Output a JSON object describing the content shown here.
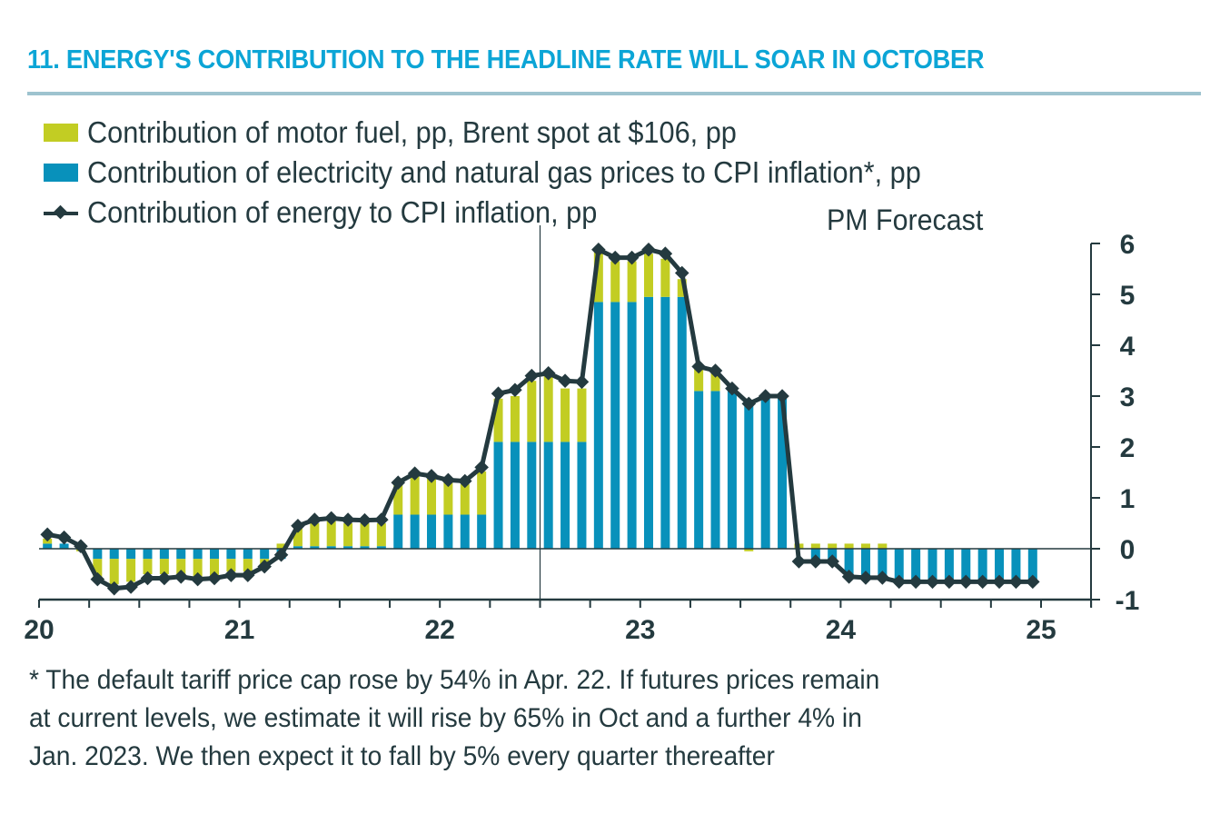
{
  "title": "11.  ENERGY'S CONTRIBUTION TO THE HEADLINE RATE WILL SOAR IN OCTOBER",
  "forecast_label": "PM Forecast",
  "footnote_lines": [
    "* The default tariff price cap rose by 54% in Apr. 22.  If futures prices remain",
    "at current levels, we estimate it will rise by 65% in Oct and a further 4% in",
    "Jan. 2023.  We then expect it to fall by 5% every quarter thereafter"
  ],
  "colors": {
    "title": "#0ca5d6",
    "motor_fuel": "#c2cd23",
    "electricity_gas": "#0891bb",
    "energy_line": "#243a3f",
    "axis": "#243a3f"
  },
  "chart_data": {
    "type": "bar",
    "stacked": true,
    "title": "ENERGY'S CONTRIBUTION TO THE HEADLINE RATE WILL SOAR IN OCTOBER",
    "xlabel": "",
    "ylabel": "",
    "y_axis_side": "right",
    "ylim": [
      -1,
      6
    ],
    "yticks": [
      "6",
      "5",
      "4",
      "3",
      "2",
      "1",
      "0",
      "-1"
    ],
    "ytick_values": [
      6,
      5,
      4,
      3,
      2,
      1,
      0,
      -1
    ],
    "xlim_years": [
      2020,
      2025.25
    ],
    "xtick_labels": [
      "20",
      "21",
      "22",
      "23",
      "24",
      "25"
    ],
    "xtick_label_values": [
      2020,
      2021,
      2022,
      2023,
      2024,
      2025
    ],
    "minor_ticks": "quarterly",
    "forecast_start": 2022.5,
    "legend_position": "top-left",
    "grid": false,
    "x_start": "Jan-2020",
    "x_frequency": "monthly",
    "series": [
      {
        "name": "Contribution of motor fuel, pp, Brent spot at $106, pp",
        "kind": "bar",
        "color": "#c2cd23",
        "values": [
          0.1,
          0.0,
          -0.05,
          -0.4,
          -0.5,
          -0.45,
          -0.3,
          -0.3,
          -0.3,
          -0.35,
          -0.35,
          -0.25,
          -0.25,
          -0.1,
          0.1,
          0.35,
          0.45,
          0.5,
          0.45,
          0.45,
          0.45,
          0.6,
          0.75,
          0.7,
          0.65,
          0.6,
          0.85,
          0.85,
          0.9,
          1.2,
          1.3,
          1.05,
          1.05,
          1.0,
          0.8,
          0.8,
          0.85,
          0.75,
          0.35,
          0.45,
          0.35,
          0.05,
          -0.05,
          0.0,
          0.0,
          0.1,
          0.1,
          0.1,
          0.1,
          0.1,
          0.1,
          0.0,
          0.0,
          0.0,
          0.0,
          0.0,
          0.0,
          0.0,
          0.0,
          0.0
        ]
      },
      {
        "name": "Contribution of electricity and natural gas prices to CPI inflation*, pp",
        "kind": "bar",
        "color": "#0891bb",
        "values": [
          0.1,
          0.1,
          0.0,
          -0.2,
          -0.2,
          -0.2,
          -0.2,
          -0.2,
          -0.2,
          -0.2,
          -0.2,
          -0.2,
          -0.2,
          -0.2,
          -0.2,
          0.05,
          0.05,
          0.05,
          0.05,
          0.05,
          0.05,
          0.67,
          0.67,
          0.67,
          0.67,
          0.67,
          0.67,
          2.1,
          2.1,
          2.1,
          2.1,
          2.1,
          2.1,
          4.85,
          4.85,
          4.85,
          4.95,
          4.95,
          4.95,
          3.1,
          3.1,
          3.1,
          2.9,
          2.95,
          2.95,
          0.0,
          -0.3,
          -0.3,
          -0.6,
          -0.6,
          -0.6,
          -0.63,
          -0.63,
          -0.63,
          -0.63,
          -0.63,
          -0.63,
          -0.63,
          -0.63,
          -0.63
        ]
      },
      {
        "name": "Contribution of energy to CPI inflation, pp",
        "kind": "line",
        "marker": "diamond",
        "color": "#243a3f",
        "values": [
          0.28,
          0.22,
          0.05,
          -0.6,
          -0.78,
          -0.75,
          -0.58,
          -0.58,
          -0.55,
          -0.6,
          -0.58,
          -0.52,
          -0.52,
          -0.35,
          -0.12,
          0.45,
          0.57,
          0.6,
          0.57,
          0.56,
          0.57,
          1.3,
          1.48,
          1.43,
          1.35,
          1.33,
          1.6,
          3.05,
          3.12,
          3.4,
          3.45,
          3.3,
          3.28,
          5.88,
          5.72,
          5.72,
          5.88,
          5.8,
          5.42,
          3.58,
          3.5,
          3.15,
          2.85,
          3.0,
          3.0,
          -0.25,
          -0.25,
          -0.25,
          -0.55,
          -0.57,
          -0.57,
          -0.65,
          -0.65,
          -0.65,
          -0.65,
          -0.65,
          -0.65,
          -0.65,
          -0.65,
          -0.65
        ]
      }
    ]
  }
}
